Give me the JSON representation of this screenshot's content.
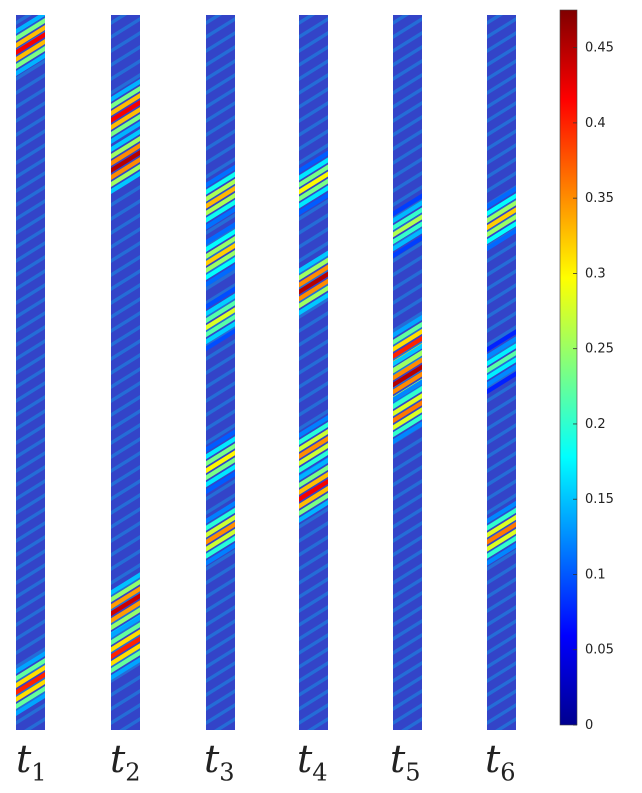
{
  "figure": {
    "time_labels": [
      {
        "symbol": "t",
        "sub": "1"
      },
      {
        "symbol": "t",
        "sub": "2"
      },
      {
        "symbol": "t",
        "sub": "3"
      },
      {
        "symbol": "t",
        "sub": "4"
      },
      {
        "symbol": "t",
        "sub": "5"
      },
      {
        "symbol": "t",
        "sub": "6"
      }
    ],
    "colorbar": {
      "min": 0,
      "max": 0.475,
      "ticks": [
        "0",
        "0.05",
        "0.1",
        "0.15",
        "0.2",
        "0.25",
        "0.3",
        "0.35",
        "0.4",
        "0.45"
      ],
      "colormap": "jet"
    },
    "colors": {
      "low": "#00008f",
      "base_field": "#3344c8",
      "mid": "#6ff0c8",
      "high": "#8b0000"
    },
    "panels": [
      {
        "name": "t1",
        "bands": [
          {
            "center": 0.035,
            "intensity": 0.42
          },
          {
            "center": 0.93,
            "intensity": 0.4
          }
        ]
      },
      {
        "name": "t2",
        "bands": [
          {
            "center": 0.13,
            "intensity": 0.42
          },
          {
            "center": 0.2,
            "intensity": 0.45
          },
          {
            "center": 0.82,
            "intensity": 0.44
          },
          {
            "center": 0.88,
            "intensity": 0.4
          }
        ]
      },
      {
        "name": "t3",
        "bands": [
          {
            "center": 0.25,
            "intensity": 0.33
          },
          {
            "center": 0.33,
            "intensity": 0.32
          },
          {
            "center": 0.42,
            "intensity": 0.28
          },
          {
            "center": 0.62,
            "intensity": 0.3
          },
          {
            "center": 0.72,
            "intensity": 0.35
          }
        ]
      },
      {
        "name": "t4",
        "bands": [
          {
            "center": 0.23,
            "intensity": 0.3
          },
          {
            "center": 0.37,
            "intensity": 0.45
          },
          {
            "center": 0.6,
            "intensity": 0.35
          },
          {
            "center": 0.66,
            "intensity": 0.42
          }
        ]
      },
      {
        "name": "t5",
        "bands": [
          {
            "center": 0.29,
            "intensity": 0.26
          },
          {
            "center": 0.46,
            "intensity": 0.4
          },
          {
            "center": 0.5,
            "intensity": 0.45
          },
          {
            "center": 0.55,
            "intensity": 0.36
          }
        ]
      },
      {
        "name": "t6",
        "bands": [
          {
            "center": 0.28,
            "intensity": 0.32
          },
          {
            "center": 0.48,
            "intensity": 0.22
          },
          {
            "center": 0.72,
            "intensity": 0.36
          }
        ]
      }
    ]
  }
}
